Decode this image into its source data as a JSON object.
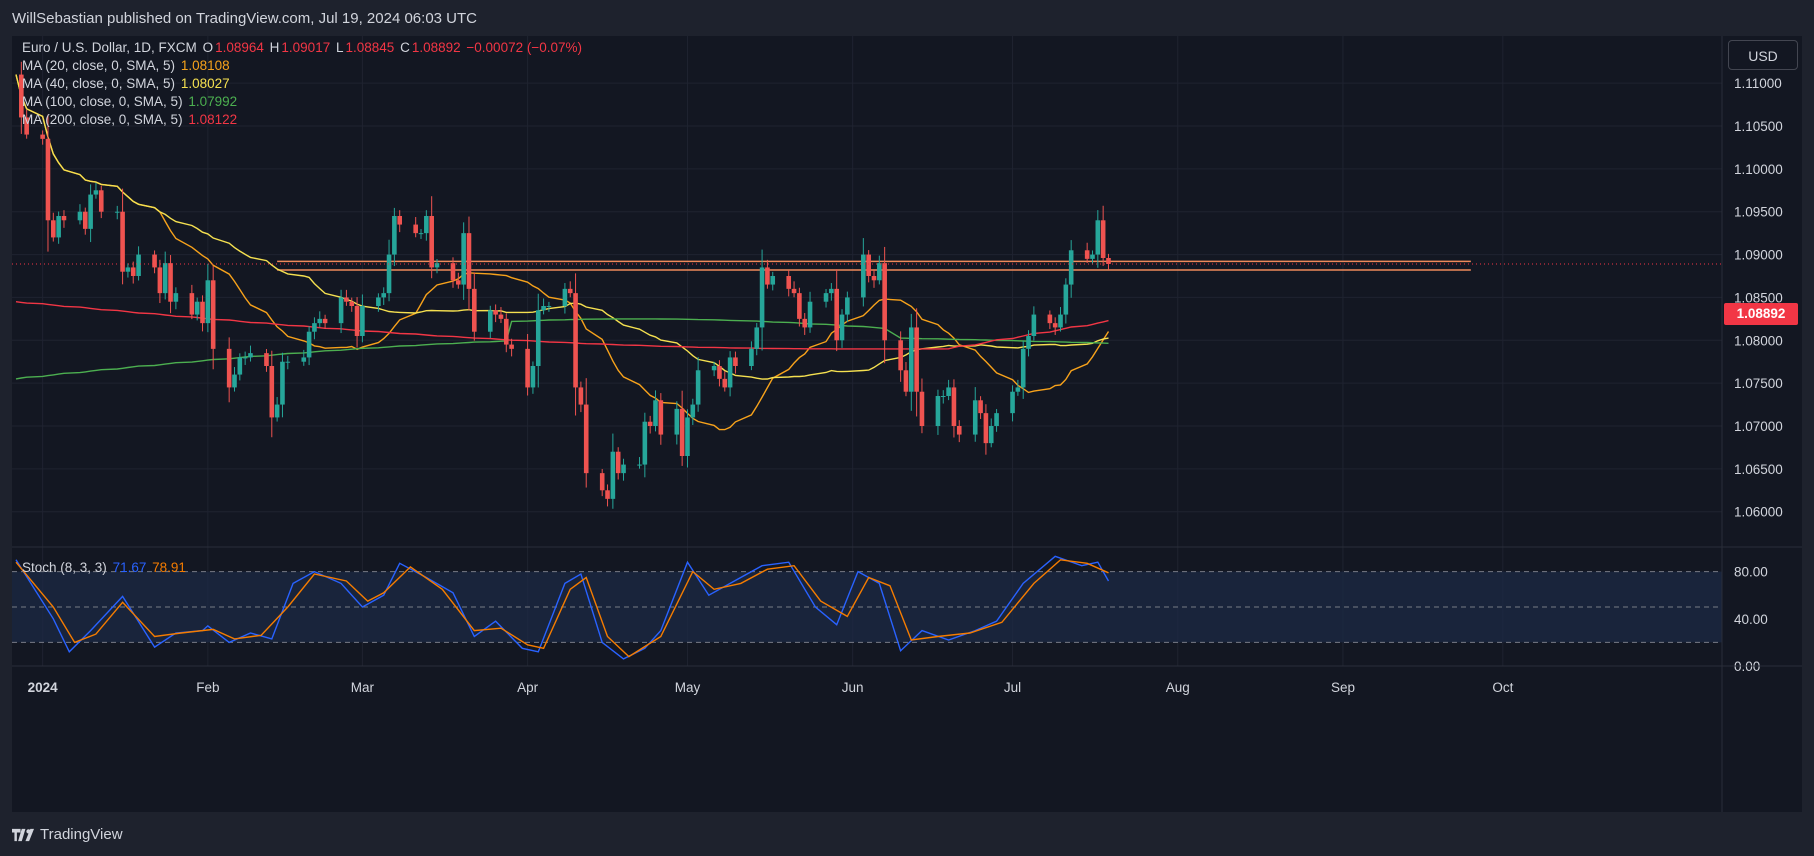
{
  "header": {
    "publisher_text": "WillSebastian published on TradingView.com, Jul 19, 2024 06:03 UTC"
  },
  "footer": {
    "brand": "TradingView"
  },
  "toolbar": {
    "currency_label": "USD"
  },
  "legend": {
    "symbol": "Euro / U.S. Dollar, 1D, FXCM",
    "ohlc": {
      "o_label": "O",
      "o": "1.08964",
      "h_label": "H",
      "h": "1.09017",
      "l_label": "L",
      "l": "1.08845",
      "c_label": "C",
      "c": "1.08892",
      "change": "−0.00072 (−0.07%)"
    },
    "ma": [
      {
        "label": "MA (20, close, 0, SMA, 5)",
        "value": "1.08108",
        "color": "#f7a21b"
      },
      {
        "label": "MA (40, close, 0, SMA, 5)",
        "value": "1.08027",
        "color": "#f5e050"
      },
      {
        "label": "MA (100, close, 0, SMA, 5)",
        "value": "1.07992",
        "color": "#4caf50"
      },
      {
        "label": "MA (200, close, 0, SMA, 5)",
        "value": "1.08122",
        "color": "#f23645"
      }
    ],
    "stoch": {
      "label": "Stoch (8, 3, 3)",
      "k": "71.67",
      "d": "78.91",
      "k_color": "#2962ff",
      "d_color": "#f57c00"
    }
  },
  "last_price_badge": "1.08892",
  "chart_data": {
    "type": "candlestick",
    "timeframe": "1D",
    "price_axis": {
      "ticks": [
        "1.11000",
        "1.10500",
        "1.10000",
        "1.09500",
        "1.09000",
        "1.08500",
        "1.08000",
        "1.07500",
        "1.07000",
        "1.06500",
        "1.06000"
      ],
      "range": [
        1.056,
        1.1155
      ]
    },
    "stoch_axis": {
      "ticks": [
        "80.00",
        "40.00",
        "0.00"
      ],
      "range": [
        0,
        100
      ],
      "band": [
        20,
        80
      ]
    },
    "time_axis": {
      "ticks": [
        {
          "label": "2024",
          "date": "2024-01-01"
        },
        {
          "label": "Feb",
          "date": "2024-02-01"
        },
        {
          "label": "Mar",
          "date": "2024-03-01"
        },
        {
          "label": "Apr",
          "date": "2024-04-01"
        },
        {
          "label": "May",
          "date": "2024-05-01"
        },
        {
          "label": "Jun",
          "date": "2024-06-01"
        },
        {
          "label": "Jul",
          "date": "2024-07-01"
        },
        {
          "label": "Aug",
          "date": "2024-08-01"
        },
        {
          "label": "Sep",
          "date": "2024-09-01"
        },
        {
          "label": "Oct",
          "date": "2024-10-01"
        }
      ],
      "range": [
        "2023-12-27",
        "2024-11-10"
      ]
    },
    "closes": [
      [
        "2023-12-27",
        1.111
      ],
      [
        "2023-12-28",
        1.106
      ],
      [
        "2023-12-29",
        1.104
      ],
      [
        "2024-01-01",
        1.1035
      ],
      [
        "2024-01-02",
        1.094
      ],
      [
        "2024-01-03",
        1.092
      ],
      [
        "2024-01-04",
        1.0945
      ],
      [
        "2024-01-05",
        1.094
      ],
      [
        "2024-01-08",
        1.095
      ],
      [
        "2024-01-09",
        1.093
      ],
      [
        "2024-01-10",
        1.097
      ],
      [
        "2024-01-11",
        1.0975
      ],
      [
        "2024-01-12",
        1.095
      ],
      [
        "2024-01-15",
        1.095
      ],
      [
        "2024-01-16",
        1.088
      ],
      [
        "2024-01-17",
        1.0885
      ],
      [
        "2024-01-18",
        1.0875
      ],
      [
        "2024-01-19",
        1.09
      ],
      [
        "2024-01-22",
        1.0885
      ],
      [
        "2024-01-23",
        1.0855
      ],
      [
        "2024-01-24",
        1.089
      ],
      [
        "2024-01-25",
        1.0845
      ],
      [
        "2024-01-26",
        1.0855
      ],
      [
        "2024-01-29",
        1.083
      ],
      [
        "2024-01-30",
        1.0845
      ],
      [
        "2024-01-31",
        1.082
      ],
      [
        "2024-02-01",
        1.087
      ],
      [
        "2024-02-02",
        1.079
      ],
      [
        "2024-02-05",
        1.0745
      ],
      [
        "2024-02-06",
        1.076
      ],
      [
        "2024-02-07",
        1.078
      ],
      [
        "2024-02-08",
        1.078
      ],
      [
        "2024-02-09",
        1.0785
      ],
      [
        "2024-02-12",
        1.077
      ],
      [
        "2024-02-13",
        1.071
      ],
      [
        "2024-02-14",
        1.0725
      ],
      [
        "2024-02-15",
        1.0775
      ],
      [
        "2024-02-16",
        1.0775
      ],
      [
        "2024-02-19",
        1.078
      ],
      [
        "2024-02-20",
        1.081
      ],
      [
        "2024-02-21",
        1.082
      ],
      [
        "2024-02-22",
        1.0825
      ],
      [
        "2024-02-23",
        1.082
      ],
      [
        "2024-02-26",
        1.085
      ],
      [
        "2024-02-27",
        1.0845
      ],
      [
        "2024-02-28",
        1.084
      ],
      [
        "2024-02-29",
        1.0805
      ],
      [
        "2024-03-01",
        1.084
      ],
      [
        "2024-03-04",
        1.085
      ],
      [
        "2024-03-05",
        1.0855
      ],
      [
        "2024-03-06",
        1.09
      ],
      [
        "2024-03-07",
        1.0945
      ],
      [
        "2024-03-08",
        1.0935
      ],
      [
        "2024-03-11",
        1.0925
      ],
      [
        "2024-03-12",
        1.0925
      ],
      [
        "2024-03-13",
        1.0945
      ],
      [
        "2024-03-14",
        1.0885
      ],
      [
        "2024-03-15",
        1.089
      ],
      [
        "2024-03-18",
        1.087
      ],
      [
        "2024-03-19",
        1.0865
      ],
      [
        "2024-03-20",
        1.0925
      ],
      [
        "2024-03-21",
        1.086
      ],
      [
        "2024-03-22",
        1.081
      ],
      [
        "2024-03-25",
        1.0835
      ],
      [
        "2024-03-26",
        1.083
      ],
      [
        "2024-03-27",
        1.0825
      ],
      [
        "2024-03-28",
        1.0795
      ],
      [
        "2024-03-29",
        1.079
      ],
      [
        "2024-04-01",
        1.0745
      ],
      [
        "2024-04-02",
        1.077
      ],
      [
        "2024-04-03",
        1.0835
      ],
      [
        "2024-04-04",
        1.084
      ],
      [
        "2024-04-05",
        1.084
      ],
      [
        "2024-04-08",
        1.086
      ],
      [
        "2024-04-09",
        1.0855
      ],
      [
        "2024-04-10",
        1.0745
      ],
      [
        "2024-04-11",
        1.0725
      ],
      [
        "2024-04-12",
        1.0645
      ],
      [
        "2024-04-15",
        1.0625
      ],
      [
        "2024-04-16",
        1.0615
      ],
      [
        "2024-04-17",
        1.067
      ],
      [
        "2024-04-18",
        1.0645
      ],
      [
        "2024-04-19",
        1.0655
      ],
      [
        "2024-04-22",
        1.0655
      ],
      [
        "2024-04-23",
        1.0705
      ],
      [
        "2024-04-24",
        1.07
      ],
      [
        "2024-04-25",
        1.073
      ],
      [
        "2024-04-26",
        1.069
      ],
      [
        "2024-04-29",
        1.072
      ],
      [
        "2024-04-30",
        1.0665
      ],
      [
        "2024-05-01",
        1.071
      ],
      [
        "2024-05-02",
        1.0725
      ],
      [
        "2024-05-03",
        1.0765
      ],
      [
        "2024-05-06",
        1.077
      ],
      [
        "2024-05-07",
        1.0755
      ],
      [
        "2024-05-08",
        1.0745
      ],
      [
        "2024-05-09",
        1.078
      ],
      [
        "2024-05-10",
        1.077
      ],
      [
        "2024-05-13",
        1.079
      ],
      [
        "2024-05-14",
        1.0815
      ],
      [
        "2024-05-15",
        1.0885
      ],
      [
        "2024-05-16",
        1.0865
      ],
      [
        "2024-05-17",
        1.0875
      ],
      [
        "2024-05-20",
        1.086
      ],
      [
        "2024-05-21",
        1.0855
      ],
      [
        "2024-05-22",
        1.0825
      ],
      [
        "2024-05-23",
        1.0815
      ],
      [
        "2024-05-24",
        1.0845
      ],
      [
        "2024-05-27",
        1.0855
      ],
      [
        "2024-05-28",
        1.086
      ],
      [
        "2024-05-29",
        1.08
      ],
      [
        "2024-05-30",
        1.083
      ],
      [
        "2024-05-31",
        1.085
      ],
      [
        "2024-06-03",
        1.09
      ],
      [
        "2024-06-04",
        1.0875
      ],
      [
        "2024-06-05",
        1.087
      ],
      [
        "2024-06-06",
        1.089
      ],
      [
        "2024-06-07",
        1.08
      ],
      [
        "2024-06-10",
        1.0765
      ],
      [
        "2024-06-11",
        1.074
      ],
      [
        "2024-06-12",
        1.0815
      ],
      [
        "2024-06-13",
        1.074
      ],
      [
        "2024-06-14",
        1.07
      ],
      [
        "2024-06-17",
        1.0735
      ],
      [
        "2024-06-18",
        1.0735
      ],
      [
        "2024-06-19",
        1.0745
      ],
      [
        "2024-06-20",
        1.07
      ],
      [
        "2024-06-21",
        1.069
      ],
      [
        "2024-06-24",
        1.073
      ],
      [
        "2024-06-25",
        1.0715
      ],
      [
        "2024-06-26",
        1.068
      ],
      [
        "2024-06-27",
        1.07
      ],
      [
        "2024-06-28",
        1.0715
      ],
      [
        "2024-07-01",
        1.074
      ],
      [
        "2024-07-02",
        1.0745
      ],
      [
        "2024-07-03",
        1.079
      ],
      [
        "2024-07-04",
        1.0805
      ],
      [
        "2024-07-05",
        1.083
      ],
      [
        "2024-07-08",
        1.082
      ],
      [
        "2024-07-09",
        1.0815
      ],
      [
        "2024-07-10",
        1.083
      ],
      [
        "2024-07-11",
        1.0865
      ],
      [
        "2024-07-12",
        1.0905
      ],
      [
        "2024-07-15",
        1.0895
      ],
      [
        "2024-07-16",
        1.09
      ],
      [
        "2024-07-17",
        1.094
      ],
      [
        "2024-07-18",
        1.0896
      ],
      [
        "2024-07-19",
        1.0889
      ]
    ],
    "stoch_k_points": [
      [
        "2023-12-27",
        90
      ],
      [
        "2024-01-03",
        40
      ],
      [
        "2024-01-06",
        12
      ],
      [
        "2024-01-10",
        30
      ],
      [
        "2024-01-16",
        59
      ],
      [
        "2024-01-22",
        16
      ],
      [
        "2024-01-26",
        28
      ],
      [
        "2024-01-31",
        30
      ],
      [
        "2024-02-01",
        34
      ],
      [
        "2024-02-05",
        20
      ],
      [
        "2024-02-09",
        28
      ],
      [
        "2024-02-13",
        23
      ],
      [
        "2024-02-17",
        70
      ],
      [
        "2024-02-21",
        80
      ],
      [
        "2024-02-26",
        70
      ],
      [
        "2024-03-01",
        50
      ],
      [
        "2024-03-05",
        60
      ],
      [
        "2024-03-08",
        87
      ],
      [
        "2024-03-13",
        75
      ],
      [
        "2024-03-18",
        62
      ],
      [
        "2024-03-22",
        25
      ],
      [
        "2024-03-26",
        38
      ],
      [
        "2024-03-31",
        15
      ],
      [
        "2024-04-03",
        12
      ],
      [
        "2024-04-08",
        70
      ],
      [
        "2024-04-11",
        78
      ],
      [
        "2024-04-15",
        20
      ],
      [
        "2024-04-19",
        6
      ],
      [
        "2024-04-23",
        15
      ],
      [
        "2024-04-26",
        30
      ],
      [
        "2024-05-01",
        88
      ],
      [
        "2024-05-05",
        60
      ],
      [
        "2024-05-09",
        70
      ],
      [
        "2024-05-15",
        85
      ],
      [
        "2024-05-20",
        88
      ],
      [
        "2024-05-25",
        50
      ],
      [
        "2024-05-29",
        35
      ],
      [
        "2024-06-02",
        80
      ],
      [
        "2024-06-06",
        70
      ],
      [
        "2024-06-10",
        13
      ],
      [
        "2024-06-14",
        30
      ],
      [
        "2024-06-19",
        22
      ],
      [
        "2024-06-24",
        30
      ],
      [
        "2024-06-28",
        38
      ],
      [
        "2024-07-03",
        70
      ],
      [
        "2024-07-09",
        93
      ],
      [
        "2024-07-14",
        85
      ],
      [
        "2024-07-17",
        88
      ],
      [
        "2024-07-19",
        72
      ]
    ],
    "stoch_d_points": [
      [
        "2023-12-27",
        88
      ],
      [
        "2024-01-03",
        50
      ],
      [
        "2024-01-07",
        20
      ],
      [
        "2024-01-11",
        27
      ],
      [
        "2024-01-16",
        54
      ],
      [
        "2024-01-22",
        25
      ],
      [
        "2024-01-27",
        28
      ],
      [
        "2024-02-02",
        31
      ],
      [
        "2024-02-06",
        23
      ],
      [
        "2024-02-11",
        26
      ],
      [
        "2024-02-16",
        50
      ],
      [
        "2024-02-21",
        78
      ],
      [
        "2024-02-27",
        72
      ],
      [
        "2024-03-02",
        55
      ],
      [
        "2024-03-05",
        62
      ],
      [
        "2024-03-10",
        84
      ],
      [
        "2024-03-16",
        65
      ],
      [
        "2024-03-22",
        30
      ],
      [
        "2024-03-27",
        32
      ],
      [
        "2024-04-01",
        18
      ],
      [
        "2024-04-04",
        15
      ],
      [
        "2024-04-09",
        65
      ],
      [
        "2024-04-12",
        75
      ],
      [
        "2024-04-16",
        25
      ],
      [
        "2024-04-20",
        8
      ],
      [
        "2024-04-26",
        25
      ],
      [
        "2024-05-02",
        80
      ],
      [
        "2024-05-06",
        65
      ],
      [
        "2024-05-11",
        70
      ],
      [
        "2024-05-16",
        82
      ],
      [
        "2024-05-21",
        85
      ],
      [
        "2024-05-26",
        55
      ],
      [
        "2024-05-31",
        42
      ],
      [
        "2024-06-04",
        75
      ],
      [
        "2024-06-08",
        68
      ],
      [
        "2024-06-12",
        22
      ],
      [
        "2024-06-17",
        25
      ],
      [
        "2024-06-23",
        28
      ],
      [
        "2024-06-29",
        37
      ],
      [
        "2024-07-05",
        70
      ],
      [
        "2024-07-10",
        90
      ],
      [
        "2024-07-15",
        87
      ],
      [
        "2024-07-19",
        79
      ]
    ]
  }
}
